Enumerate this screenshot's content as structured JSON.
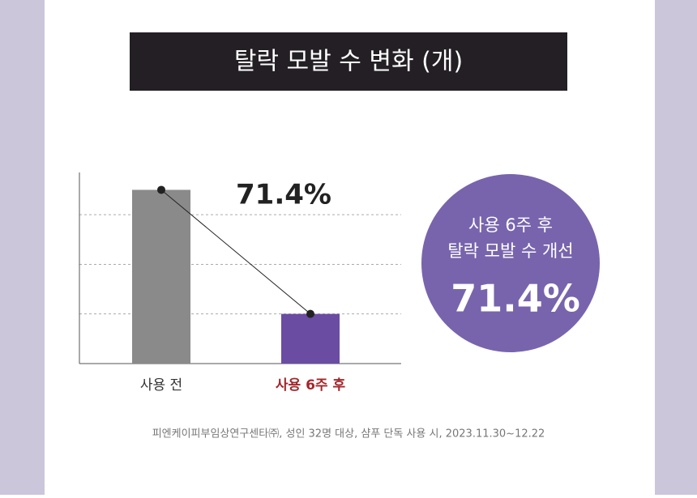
{
  "chart_data": {
    "type": "bar",
    "title": "탈락 모발 수 변화 (개)",
    "categories": [
      "사용 전",
      "사용 6주 후"
    ],
    "values": [
      100,
      28.6
    ],
    "colors": [
      "#8a8a8a",
      "#6a4ca3"
    ],
    "category_label_colors": [
      "#333333",
      "#a3262b"
    ],
    "ylim": [
      0,
      110
    ],
    "yticks": [
      28.6,
      57.1,
      85.7
    ],
    "grid": true,
    "annotation": "71.4%",
    "callout": {
      "lines": [
        "사용 6주 후",
        "탈락 모발 수 개선"
      ],
      "value": "71.4%",
      "color": "#7864ad"
    },
    "footnote": "피엔케이피부임상연구센타㈜, 성인 32명 대상, 샴푸 단독 사용 시, 2023.11.30~12.22"
  }
}
